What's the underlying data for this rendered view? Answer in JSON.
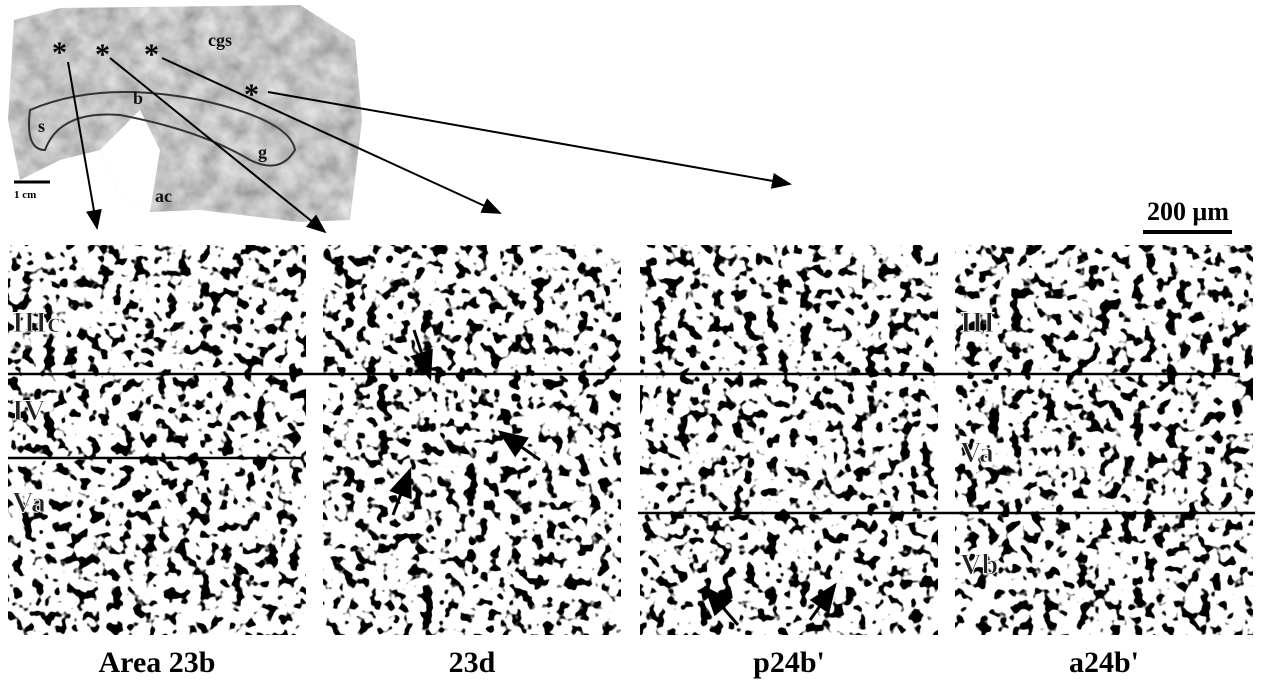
{
  "brain_image": {
    "labels": [
      "*",
      "*",
      "*",
      "*",
      "cgs",
      "s",
      "b",
      "g",
      "ac"
    ],
    "scale_bar": "1 cm"
  },
  "scale_bar": "200 μm",
  "panels": [
    {
      "caption": "Area 23b",
      "layers": [
        "IIIc",
        "IV",
        "Va"
      ]
    },
    {
      "caption": "23d",
      "layers": []
    },
    {
      "caption": "p24b'",
      "layers": []
    },
    {
      "caption": "a24b'",
      "layers": [
        "III",
        "Va",
        "Vb"
      ]
    }
  ]
}
